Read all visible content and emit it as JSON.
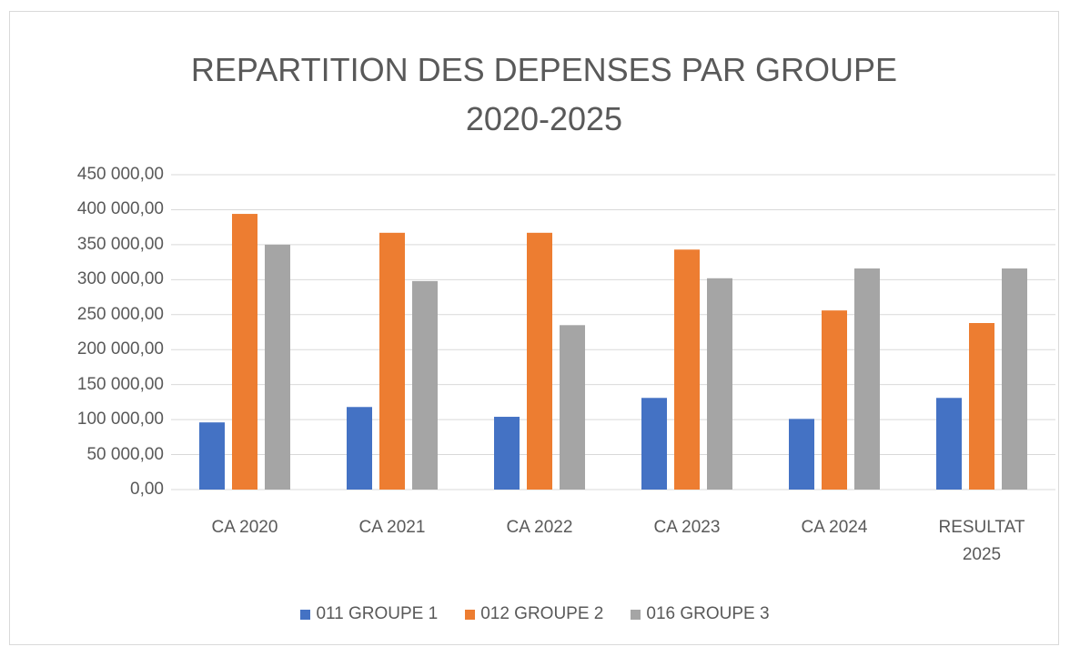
{
  "chart_data": {
    "type": "bar",
    "title": "REPARTITION DES DEPENSES PAR GROUPE 2020-2025",
    "categories": [
      "CA 2020",
      "CA 2021",
      "CA 2022",
      "CA 2023",
      "CA 2024",
      "RESULTAT 2025"
    ],
    "series": [
      {
        "name": "011 GROUPE 1",
        "color": "#4472c4",
        "values": [
          96000,
          118000,
          104000,
          131000,
          101000,
          131000
        ]
      },
      {
        "name": "012 GROUPE 2",
        "color": "#ed7d31",
        "values": [
          394000,
          367000,
          367000,
          343000,
          256000,
          238000
        ]
      },
      {
        "name": "016 GROUPE 3",
        "color": "#a5a5a5",
        "values": [
          350000,
          298000,
          235000,
          302000,
          316000,
          316000
        ]
      }
    ],
    "ylim": [
      0,
      450000
    ],
    "yticks": [
      {
        "value": 0,
        "label": "0,00"
      },
      {
        "value": 50000,
        "label": "50 000,00"
      },
      {
        "value": 100000,
        "label": "100 000,00"
      },
      {
        "value": 150000,
        "label": "150 000,00"
      },
      {
        "value": 200000,
        "label": "200 000,00"
      },
      {
        "value": 250000,
        "label": "250 000,00"
      },
      {
        "value": 300000,
        "label": "300 000,00"
      },
      {
        "value": 350000,
        "label": "350 000,00"
      },
      {
        "value": 400000,
        "label": "400 000,00"
      },
      {
        "value": 450000,
        "label": "450 000,00"
      }
    ],
    "grid": true,
    "legend": "bottom"
  }
}
